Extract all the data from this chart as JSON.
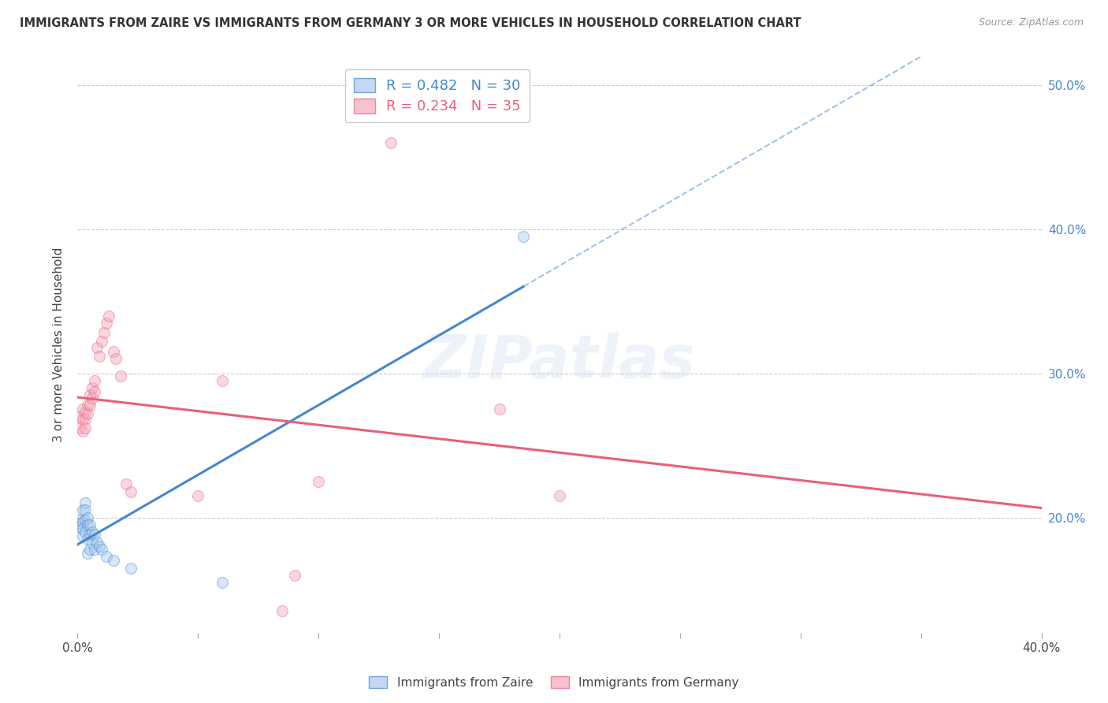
{
  "title": "IMMIGRANTS FROM ZAIRE VS IMMIGRANTS FROM GERMANY 3 OR MORE VEHICLES IN HOUSEHOLD CORRELATION CHART",
  "source": "Source: ZipAtlas.com",
  "ylabel": "3 or more Vehicles in Household",
  "watermark": "ZIPatlas",
  "legend1_label": "R = 0.482   N = 30",
  "legend2_label": "R = 0.234   N = 35",
  "zaire_color": "#A8C8F0",
  "germany_color": "#F4A8BC",
  "zaire_line_color": "#4488CC",
  "germany_line_color": "#E8607A",
  "zaire_scatter": [
    [
      0.001,
      0.198
    ],
    [
      0.001,
      0.196
    ],
    [
      0.001,
      0.193
    ],
    [
      0.002,
      0.205
    ],
    [
      0.002,
      0.197
    ],
    [
      0.002,
      0.192
    ],
    [
      0.002,
      0.187
    ],
    [
      0.003,
      0.21
    ],
    [
      0.003,
      0.205
    ],
    [
      0.003,
      0.198
    ],
    [
      0.003,
      0.19
    ],
    [
      0.004,
      0.2
    ],
    [
      0.004,
      0.195
    ],
    [
      0.004,
      0.185
    ],
    [
      0.004,
      0.175
    ],
    [
      0.005,
      0.195
    ],
    [
      0.005,
      0.188
    ],
    [
      0.005,
      0.178
    ],
    [
      0.006,
      0.19
    ],
    [
      0.006,
      0.182
    ],
    [
      0.007,
      0.188
    ],
    [
      0.007,
      0.178
    ],
    [
      0.008,
      0.183
    ],
    [
      0.009,
      0.18
    ],
    [
      0.01,
      0.178
    ],
    [
      0.012,
      0.173
    ],
    [
      0.015,
      0.17
    ],
    [
      0.022,
      0.165
    ],
    [
      0.06,
      0.155
    ],
    [
      0.185,
      0.395
    ]
  ],
  "germany_scatter": [
    [
      0.001,
      0.27
    ],
    [
      0.001,
      0.262
    ],
    [
      0.002,
      0.275
    ],
    [
      0.002,
      0.268
    ],
    [
      0.002,
      0.26
    ],
    [
      0.003,
      0.273
    ],
    [
      0.003,
      0.268
    ],
    [
      0.003,
      0.262
    ],
    [
      0.004,
      0.278
    ],
    [
      0.004,
      0.272
    ],
    [
      0.005,
      0.285
    ],
    [
      0.005,
      0.278
    ],
    [
      0.006,
      0.29
    ],
    [
      0.006,
      0.283
    ],
    [
      0.007,
      0.295
    ],
    [
      0.007,
      0.287
    ],
    [
      0.008,
      0.318
    ],
    [
      0.009,
      0.312
    ],
    [
      0.01,
      0.322
    ],
    [
      0.011,
      0.328
    ],
    [
      0.012,
      0.335
    ],
    [
      0.013,
      0.34
    ],
    [
      0.015,
      0.315
    ],
    [
      0.016,
      0.31
    ],
    [
      0.018,
      0.298
    ],
    [
      0.02,
      0.223
    ],
    [
      0.022,
      0.218
    ],
    [
      0.05,
      0.215
    ],
    [
      0.06,
      0.295
    ],
    [
      0.085,
      0.135
    ],
    [
      0.09,
      0.16
    ],
    [
      0.1,
      0.225
    ],
    [
      0.13,
      0.46
    ],
    [
      0.175,
      0.275
    ],
    [
      0.2,
      0.215
    ]
  ],
  "xlim": [
    0,
    0.4
  ],
  "ylim": [
    0.12,
    0.52
  ],
  "yticks": [
    0.2,
    0.3,
    0.4,
    0.5
  ],
  "ytick_labels": [
    "20.0%",
    "30.0%",
    "40.0%",
    "50.0%"
  ],
  "xticks": [
    0.0,
    0.05,
    0.1,
    0.15,
    0.2,
    0.25,
    0.3,
    0.35,
    0.4
  ],
  "xtick_labels": [
    "0.0%",
    "",
    "",
    "",
    "",
    "",
    "",
    "",
    "40.0%"
  ],
  "marker_size": 100,
  "marker_alpha": 0.45,
  "grid_color": "#CCCCCC",
  "bg_color": "#FFFFFF",
  "tick_color": "#AAAAAA",
  "right_tick_color": "#4488CC"
}
